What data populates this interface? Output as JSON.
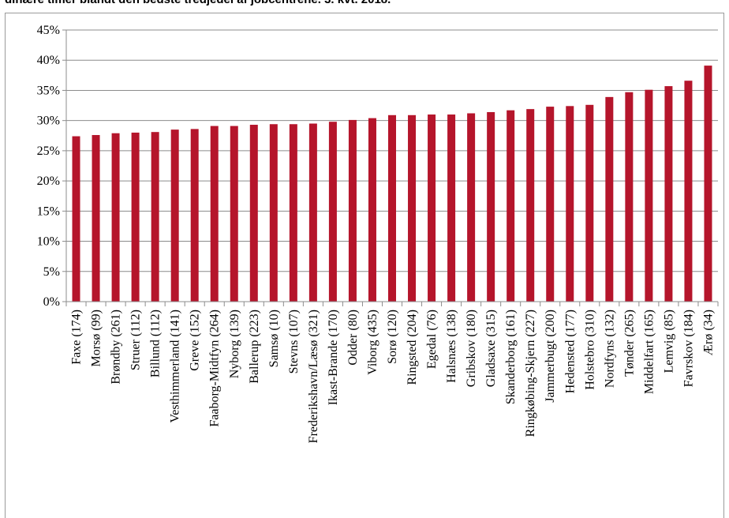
{
  "title": "dinære timer blandt den bedste tredjedel af jobcentrene. 3. kvt. 2018.",
  "chart_data": {
    "type": "bar",
    "categories": [
      "Faxe (174)",
      "Morsø (99)",
      "Brøndby (261)",
      "Struer (112)",
      "Billund (112)",
      "Vesthimmerland (141)",
      "Greve (152)",
      "Faaborg-Midtfyn (264)",
      "Nyborg (139)",
      "Ballerup (223)",
      "Samsø (10)",
      "Stevns (107)",
      "Frederikshavn/Læsø (321)",
      "Ikast-Brande (170)",
      "Odder (80)",
      "Viborg (435)",
      "Sorø (120)",
      "Ringsted (204)",
      "Egedal (76)",
      "Halsnæs (138)",
      "Gribskov (180)",
      "Gladsaxe (315)",
      "Skanderborg (161)",
      "Ringkøbing-Skjern (227)",
      "Jammerbugt (200)",
      "Hedensted (177)",
      "Holstebro (310)",
      "Nordfyns (132)",
      "Tønder (265)",
      "Middelfart (165)",
      "Lemvig (85)",
      "Favrskov (184)",
      "Ærø (34)"
    ],
    "values": [
      27.4,
      27.6,
      27.9,
      28.0,
      28.1,
      28.5,
      28.6,
      29.1,
      29.1,
      29.3,
      29.4,
      29.4,
      29.5,
      29.8,
      30.1,
      30.4,
      30.9,
      30.9,
      31.0,
      31.0,
      31.2,
      31.4,
      31.7,
      31.9,
      32.3,
      32.4,
      32.6,
      33.9,
      34.7,
      35.1,
      35.7,
      36.6,
      39.1
    ],
    "yticks": [
      "0%",
      "5%",
      "10%",
      "15%",
      "20%",
      "25%",
      "30%",
      "35%",
      "40%",
      "45%"
    ],
    "ylim": [
      0,
      45
    ],
    "bar_color": "#b5152b",
    "grid": true
  }
}
